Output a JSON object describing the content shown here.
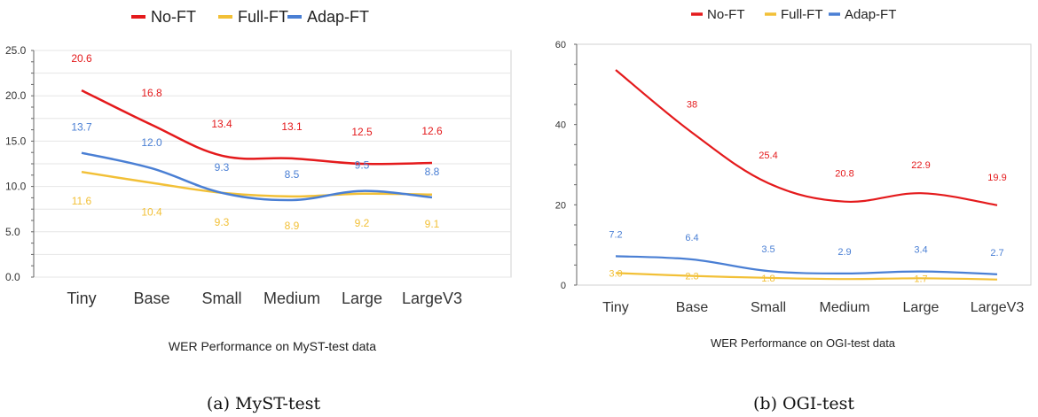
{
  "chart_data": [
    {
      "type": "line",
      "title": "WER Performance on MyST-test data",
      "subcaption": "(a) MyST-test",
      "categories": [
        "Tiny",
        "Base",
        "Small",
        "Medium",
        "Large",
        "LargeV3"
      ],
      "series": [
        {
          "name": "No-FT",
          "color": "#e41a1c",
          "values": [
            20.6,
            16.8,
            13.4,
            13.1,
            12.5,
            12.6
          ]
        },
        {
          "name": "Full-FT",
          "color": "#f2c037",
          "values": [
            11.6,
            10.4,
            9.3,
            8.9,
            9.2,
            9.1
          ]
        },
        {
          "name": "Adap-FT",
          "color": "#4a7fd4",
          "values": [
            13.7,
            12.0,
            9.3,
            8.5,
            9.5,
            8.8
          ]
        }
      ],
      "yticks": [
        "0.0",
        "5.0",
        "10.0",
        "15.0",
        "20.0",
        "25.0"
      ],
      "ylim": [
        0,
        25
      ],
      "legend_position": "top-center"
    },
    {
      "type": "line",
      "title": "WER Performance on OGI-test data",
      "subcaption": "(b) OGI-test",
      "categories": [
        "Tiny",
        "Base",
        "Small",
        "Medium",
        "Large",
        "LargeV3"
      ],
      "series": [
        {
          "name": "No-FT",
          "color": "#e41a1c",
          "values": [
            53.6,
            38,
            25.4,
            20.8,
            22.9,
            19.9
          ]
        },
        {
          "name": "Full-FT",
          "color": "#f2c037",
          "values": [
            3.0,
            2.3,
            1.8,
            1.5,
            1.7,
            1.4
          ]
        },
        {
          "name": "Adap-FT",
          "color": "#4a7fd4",
          "values": [
            7.2,
            6.4,
            3.5,
            2.9,
            3.4,
            2.7
          ]
        }
      ],
      "labels": {
        "No-FT": [
          "",
          "38",
          "25.4",
          "20.8",
          "22.9",
          "19.9"
        ],
        "Full-FT": [
          "3.0",
          "2.3",
          "1.8",
          "",
          "1.7",
          ""
        ],
        "Adap-FT": [
          "7.2",
          "6.4",
          "3.5",
          "2.9",
          "3.4",
          "2.7"
        ]
      },
      "yticks": [
        "0",
        "20",
        "40",
        "60"
      ],
      "ylim": [
        0,
        60
      ],
      "legend_position": "top-center"
    }
  ]
}
